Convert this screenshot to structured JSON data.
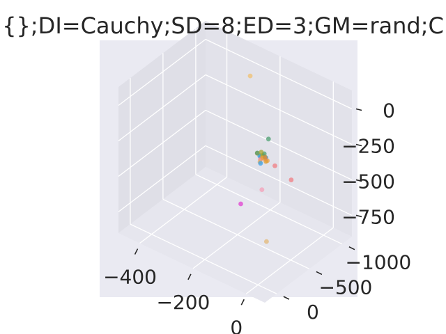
{
  "chart_data": {
    "type": "scatter",
    "projection": "3d",
    "title": "{};DI=Cauchy;SD=8;ED=3;GM=rand;C",
    "xlabel": "",
    "ylabel": "",
    "zlabel": "",
    "grid": true,
    "background_color": "#eaeaf2",
    "x_ticks": [
      "−400",
      "−200",
      "0"
    ],
    "y_ticks": [
      "−1000",
      "−500",
      "0"
    ],
    "z_ticks": [
      "−750",
      "−500",
      "−250",
      "0"
    ],
    "points": [
      {
        "x": 5,
        "y": -20,
        "z": 8,
        "color": "#4c9f70"
      },
      {
        "x": 3,
        "y": -15,
        "z": 6,
        "color": "#3ba3ec"
      },
      {
        "x": 10,
        "y": -30,
        "z": 2,
        "color": "#e8a042"
      },
      {
        "x": 8,
        "y": -5,
        "z": -10,
        "color": "#f07c82"
      },
      {
        "x": 12,
        "y": -25,
        "z": 15,
        "color": "#a6a32f"
      },
      {
        "x": -5,
        "y": -10,
        "z": 20,
        "color": "#dd9a33"
      },
      {
        "x": 15,
        "y": -35,
        "z": 25,
        "color": "#4c9f70"
      },
      {
        "x": 20,
        "y": -40,
        "z": 0,
        "color": "#3ba3ec"
      },
      {
        "x": 30,
        "y": -20,
        "z": -5,
        "color": "#e8a042"
      },
      {
        "x": -10,
        "y": -30,
        "z": 10,
        "color": "#4c9f70"
      },
      {
        "x": 0,
        "y": -50,
        "z": 18,
        "color": "#a6a32f"
      },
      {
        "x": 25,
        "y": -10,
        "z": 5,
        "color": "#f07c82"
      },
      {
        "x": 7,
        "y": -45,
        "z": -15,
        "color": "#e8a042"
      },
      {
        "x": 10,
        "y": -120,
        "z": 95,
        "color": "#4c9f70"
      },
      {
        "x": 12,
        "y": -60,
        "z": -10,
        "color": "#cf8b35"
      },
      {
        "x": 50,
        "y": -55,
        "z": -35,
        "color": "#f07c82"
      },
      {
        "x": 15,
        "y": 30,
        "z": -10,
        "color": "#e0b060"
      },
      {
        "x": -10,
        "y": -80,
        "z": -80,
        "color": "#3ba3ec"
      },
      {
        "x": 5,
        "y": -100,
        "z": -60,
        "color": "#e0a030"
      },
      {
        "x": 0,
        "y": -60,
        "z": -250,
        "color": "#f4a0b8"
      },
      {
        "x": 0,
        "y": -130,
        "z": -640,
        "color": "#e3b877"
      },
      {
        "x": -300,
        "y": -1100,
        "z": -80,
        "color": "#f0c070"
      },
      {
        "x": -200,
        "y": -550,
        "z": -700,
        "color": "#e040d0"
      },
      {
        "x": 120,
        "y": -20,
        "z": -60,
        "color": "#f07c82"
      }
    ]
  }
}
